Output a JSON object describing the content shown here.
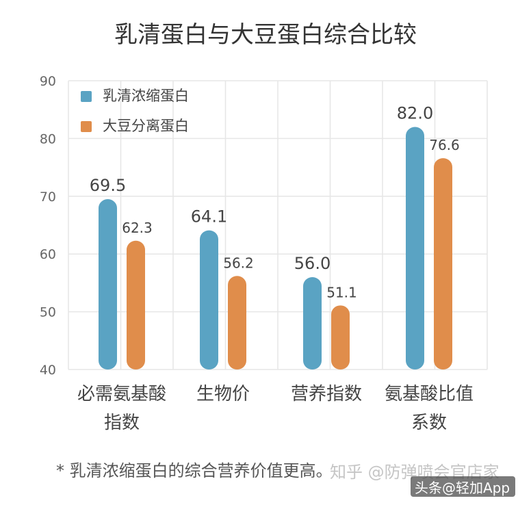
{
  "chart_data": {
    "type": "bar",
    "title": "乳清蛋白与大豆蛋白综合比较",
    "xlabel": "",
    "ylabel": "",
    "ylim": [
      40,
      90
    ],
    "yticks": [
      40,
      50,
      60,
      70,
      80,
      90
    ],
    "grid": true,
    "legend_position": "top-left",
    "categories": [
      [
        "必需氨基酸",
        "指数"
      ],
      [
        "生物价"
      ],
      [
        "营养指数"
      ],
      [
        "氨基酸比值",
        "系数"
      ]
    ],
    "series": [
      {
        "name": "乳清浓缩蛋白",
        "color": "#5aa3c3",
        "values": [
          69.5,
          64.1,
          56.0,
          82.0
        ]
      },
      {
        "name": "大豆分离蛋白",
        "color": "#e08d4b",
        "values": [
          62.3,
          56.2,
          51.1,
          76.6
        ]
      }
    ]
  },
  "footnote": "* 乳清浓缩蛋白的综合营养价值更高。",
  "watermark": {
    "zhihu": "知乎 @防弹喷会官店家",
    "source": "头条@轻加App"
  },
  "colors": {
    "grid": "#e6e6e6",
    "axis_text": "#666666",
    "label_text": "#444444",
    "title_text": "#333333"
  }
}
